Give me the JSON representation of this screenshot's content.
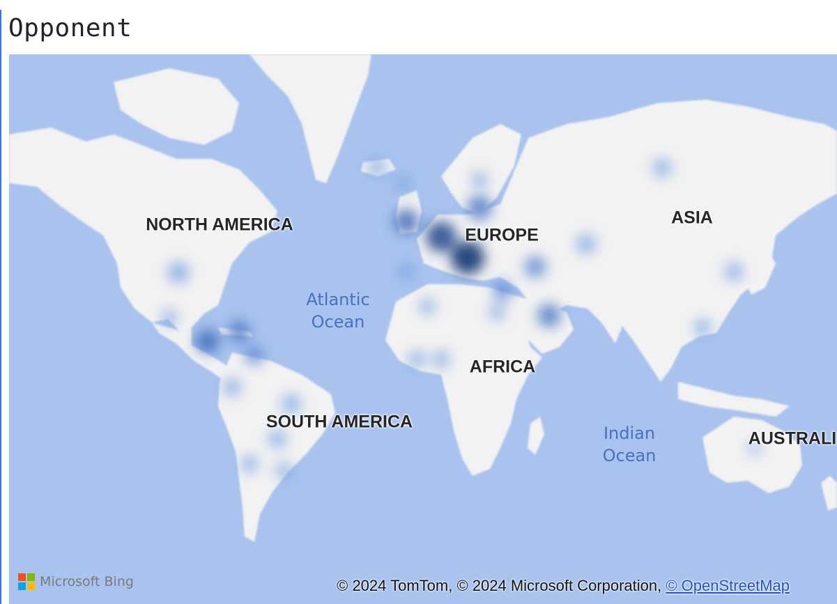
{
  "visual": {
    "title": "Opponent"
  },
  "map": {
    "continents": [
      {
        "id": "north-america",
        "label": "NORTH AMERICA"
      },
      {
        "id": "europe",
        "label": "EUROPE"
      },
      {
        "id": "asia",
        "label": "ASIA"
      },
      {
        "id": "africa",
        "label": "AFRICA"
      },
      {
        "id": "south-america",
        "label": "SOUTH AMERICA"
      },
      {
        "id": "australia",
        "label": "AUSTRALI"
      }
    ],
    "oceans": [
      {
        "id": "atlantic",
        "line1": "Atlantic",
        "line2": "Ocean"
      },
      {
        "id": "indian",
        "line1": "Indian",
        "line2": "Ocean"
      }
    ],
    "colors": {
      "water": "#a9c3ee",
      "land": "#f2f2f2",
      "heat_low": "#7fa6e4",
      "heat_high": "#1f3f78"
    }
  },
  "footer": {
    "provider_text": "Microsoft Bing",
    "provider_logo_colors": [
      "#f25022",
      "#7fba00",
      "#00a4ef",
      "#ffb900"
    ],
    "copyright_text": "© 2024 TomTom, © 2024 Microsoft Corporation, ",
    "copyright_link": "© OpenStreetMap"
  }
}
